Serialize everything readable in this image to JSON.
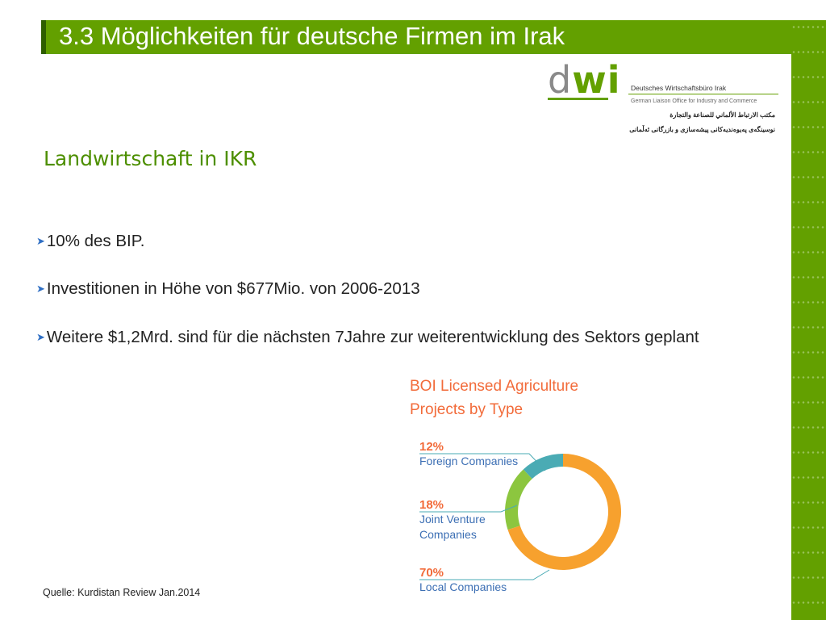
{
  "slide": {
    "title": "3.3 Möglichkeiten für deutsche Firmen im Irak",
    "subtitle": "Landwirtschaft in IKR",
    "bullets": [
      "10% des BIP.",
      "Investitionen in Höhe von $677Mio. von 2006-2013",
      "Weitere $1,2Mrd. sind für die nächsten 7Jahre zur weiterentwicklung des Sektors geplant"
    ],
    "bullet_icon": "arrow-bullet-icon",
    "source": "Quelle: Kurdistan Review Jan.2014"
  },
  "logo": {
    "mark_d": "d",
    "mark_wi": "wi",
    "name": "Deutsches Wirtschaftsbüro Irak",
    "subtitle": "German Liaison Office for Industry and Commerce",
    "arabic": "مكتب الارتباط الألماني للصناعة والتجارة",
    "kurdish": "نوسینگەی پەیوەندیەکانی پیشەسازی و بازرگانی ئەڵمانی"
  },
  "colors": {
    "brand_green": "#63a000",
    "title_text": "#ffffff",
    "orange": "#f7a12e",
    "lime": "#8cc63f",
    "teal": "#4aabb4",
    "chart_title": "#f26b3a",
    "label_blue": "#3c6fb4"
  },
  "chart_data": {
    "type": "pie",
    "style": "donut",
    "title": "BOI Licensed Agriculture Projects by Type",
    "title_lines": [
      "BOI Licensed Agriculture",
      "Projects by Type"
    ],
    "categories": [
      "Foreign Companies",
      "Joint Venture Companies",
      "Local Companies"
    ],
    "label_lines": [
      [
        "Foreign Companies"
      ],
      [
        "Joint Venture",
        "Companies"
      ],
      [
        "Local Companies"
      ]
    ],
    "values": [
      12,
      18,
      70
    ],
    "value_labels": [
      "12%",
      "18%",
      "70%"
    ],
    "colors": [
      "#4aabb4",
      "#8cc63f",
      "#f7a12e"
    ],
    "legend": "left, with leader lines"
  }
}
